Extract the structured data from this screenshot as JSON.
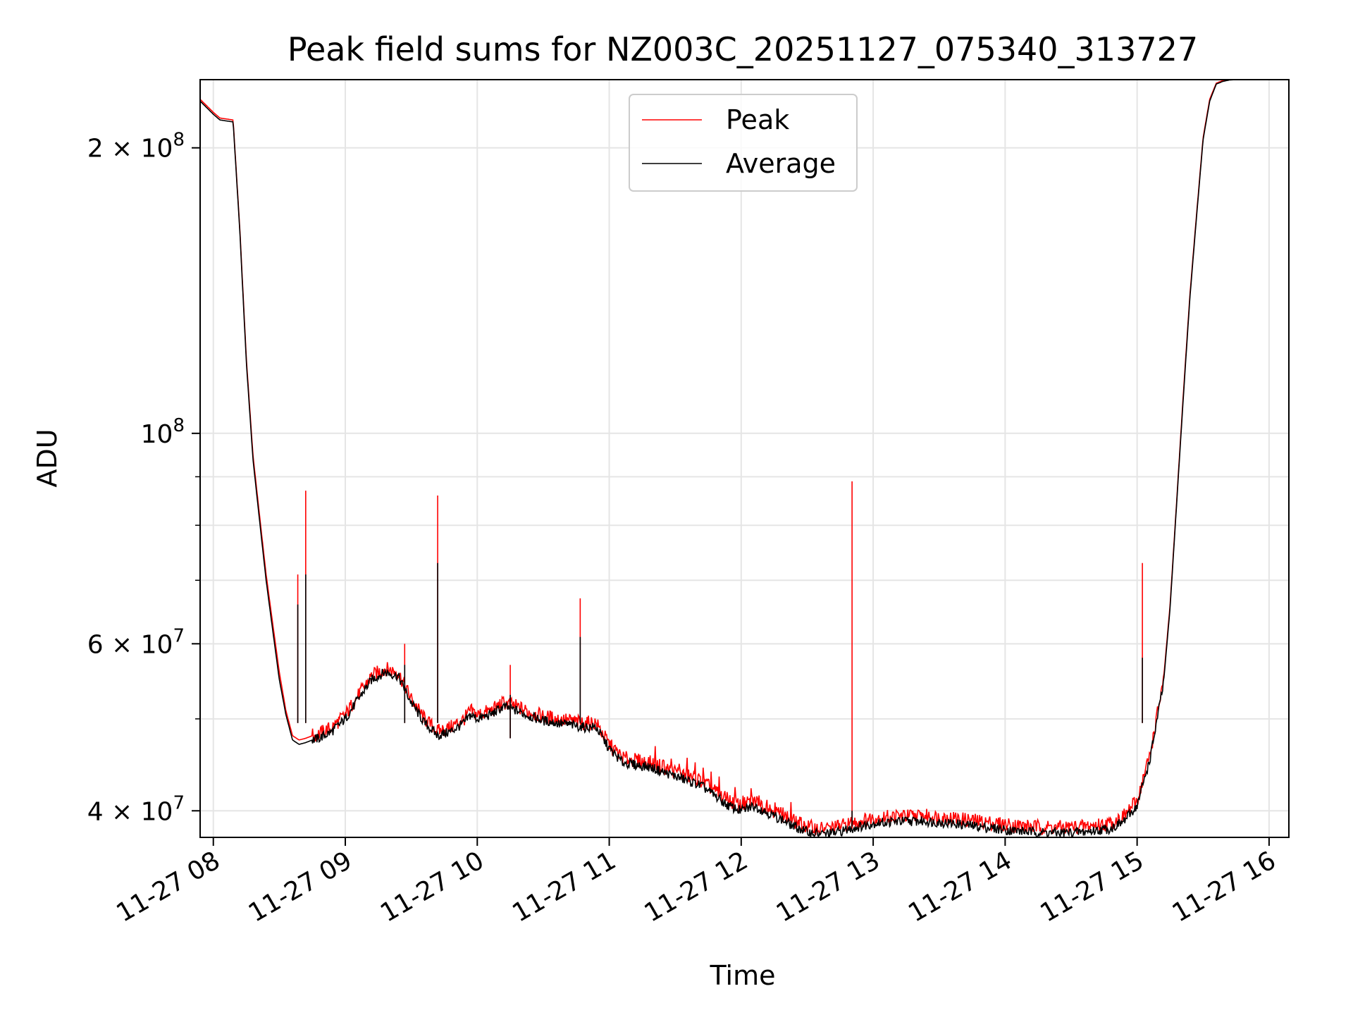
{
  "chart_data": {
    "type": "line",
    "title": "Peak field sums for NZ003C_20251127_075340_313727",
    "xlabel": "Time",
    "ylabel": "ADU",
    "yscale": "log",
    "grid": true,
    "legend_position": "top-center",
    "xlim": [
      7.9,
      16.15
    ],
    "ylim": [
      37500000,
      236000000
    ],
    "x_ticks": [
      {
        "value": 8,
        "label": "11-27 08"
      },
      {
        "value": 9,
        "label": "11-27 09"
      },
      {
        "value": 10,
        "label": "11-27 10"
      },
      {
        "value": 11,
        "label": "11-27 11"
      },
      {
        "value": 12,
        "label": "11-27 12"
      },
      {
        "value": 13,
        "label": "11-27 13"
      },
      {
        "value": 14,
        "label": "11-27 14"
      },
      {
        "value": 15,
        "label": "11-27 15"
      },
      {
        "value": 16,
        "label": "11-27 16"
      }
    ],
    "y_ticks": [
      {
        "value": 40000000,
        "mantissa": "4 × 10",
        "exponent": "7"
      },
      {
        "value": 60000000,
        "mantissa": "6 × 10",
        "exponent": "7"
      },
      {
        "value": 100000000,
        "mantissa": "10",
        "exponent": "8"
      },
      {
        "value": 200000000,
        "mantissa": "2 × 10",
        "exponent": "8"
      }
    ],
    "y_minor_ticks": [
      50000000,
      70000000,
      80000000,
      90000000
    ],
    "series": [
      {
        "name": "Peak",
        "color": "#ff0000",
        "x": [
          7.9,
          8.0,
          8.05,
          8.15,
          8.2,
          8.25,
          8.3,
          8.35,
          8.4,
          8.45,
          8.5,
          8.55,
          8.6,
          8.65,
          8.7,
          8.75,
          8.8,
          8.9,
          9.0,
          9.1,
          9.2,
          9.3,
          9.4,
          9.5,
          9.6,
          9.7,
          9.8,
          9.9,
          9.95,
          10.0,
          10.1,
          10.2,
          10.3,
          10.4,
          10.5,
          10.6,
          10.7,
          10.8,
          10.9,
          11.0,
          11.1,
          11.2,
          11.3,
          11.5,
          11.7,
          11.9,
          12.0,
          12.1,
          12.2,
          12.3,
          12.4,
          12.5,
          12.6,
          12.7,
          12.8,
          12.9,
          13.0,
          13.2,
          13.4,
          13.6,
          13.8,
          14.0,
          14.2,
          14.4,
          14.6,
          14.8,
          14.9,
          15.0,
          15.1,
          15.2,
          15.25,
          15.3,
          15.35,
          15.4,
          15.45,
          15.5,
          15.55,
          15.6,
          15.65,
          15.7,
          15.75,
          15.8,
          15.9,
          16.15
        ],
        "values": [
          225000000,
          218000000,
          215000000,
          214000000,
          165000000,
          120000000,
          95000000,
          82000000,
          71000000,
          63000000,
          56000000,
          51000000,
          48000000,
          47500000,
          47700000,
          48000000,
          48200000,
          49000000,
          50500000,
          53000000,
          55500000,
          56500000,
          56000000,
          52500000,
          50000000,
          48500000,
          49000000,
          50000000,
          51000000,
          50500000,
          51000000,
          52000000,
          51500000,
          50800000,
          50300000,
          50000000,
          49800000,
          49500000,
          49500000,
          47000000,
          45500000,
          45200000,
          45000000,
          44000000,
          43000000,
          41000000,
          40500000,
          41000000,
          40300000,
          39700000,
          39000000,
          38500000,
          38300000,
          38400000,
          38700000,
          39000000,
          39300000,
          39500000,
          39500000,
          39300000,
          39000000,
          38700000,
          38500000,
          38400000,
          38500000,
          38800000,
          39500000,
          41000000,
          46000000,
          55000000,
          66000000,
          85000000,
          110000000,
          140000000,
          170000000,
          205000000,
          225000000,
          234000000,
          235500000,
          236000000,
          236000000,
          236000000,
          236000000,
          236000000
        ]
      },
      {
        "name": "Average",
        "color": "#000000",
        "x": [
          7.9,
          8.0,
          8.05,
          8.15,
          8.2,
          8.25,
          8.3,
          8.35,
          8.4,
          8.45,
          8.5,
          8.55,
          8.6,
          8.65,
          8.7,
          8.75,
          8.8,
          8.9,
          9.0,
          9.1,
          9.2,
          9.3,
          9.4,
          9.5,
          9.6,
          9.7,
          9.8,
          9.9,
          9.95,
          10.0,
          10.1,
          10.2,
          10.3,
          10.4,
          10.5,
          10.6,
          10.7,
          10.8,
          10.9,
          11.0,
          11.1,
          11.2,
          11.3,
          11.5,
          11.7,
          11.9,
          12.0,
          12.1,
          12.2,
          12.3,
          12.4,
          12.5,
          12.6,
          12.7,
          12.8,
          12.9,
          13.0,
          13.2,
          13.4,
          13.6,
          13.8,
          14.0,
          14.2,
          14.4,
          14.6,
          14.8,
          14.9,
          15.0,
          15.1,
          15.2,
          15.25,
          15.3,
          15.35,
          15.4,
          15.45,
          15.5,
          15.55,
          15.6,
          15.65,
          15.7,
          15.75,
          15.8,
          15.9,
          16.15
        ],
        "values": [
          224000000,
          217000000,
          214000000,
          213000000,
          164000000,
          119000000,
          94000000,
          81000000,
          70000000,
          62000000,
          55000000,
          50500000,
          47500000,
          47000000,
          47200000,
          47500000,
          47700000,
          48500000,
          50000000,
          52500000,
          55000000,
          56000000,
          55500000,
          52000000,
          49500000,
          48000000,
          48500000,
          49500000,
          50500000,
          50000000,
          50500000,
          51500000,
          51000000,
          50300000,
          49800000,
          49500000,
          49300000,
          49000000,
          49000000,
          46500000,
          45000000,
          44700000,
          44500000,
          43500000,
          42500000,
          40500000,
          40000000,
          40500000,
          39800000,
          39200000,
          38500000,
          38000000,
          37800000,
          37900000,
          38200000,
          38500000,
          38800000,
          39000000,
          39000000,
          38800000,
          38500000,
          38200000,
          38000000,
          37900000,
          38000000,
          38300000,
          39000000,
          40500000,
          45500000,
          54500000,
          65500000,
          84500000,
          109000000,
          139000000,
          169000000,
          204000000,
          224000000,
          233500000,
          235000000,
          235800000,
          236000000,
          236000000,
          236000000,
          236000000
        ]
      }
    ],
    "spikes": [
      {
        "x": 8.64,
        "peak": 71000000,
        "average": 66000000
      },
      {
        "x": 8.7,
        "peak": 87000000,
        "average": 71000000
      },
      {
        "x": 9.45,
        "peak": 60000000,
        "average": 57000000
      },
      {
        "x": 9.7,
        "peak": 86000000,
        "average": 73000000
      },
      {
        "x": 10.25,
        "peak": 57000000,
        "average": 53000000
      },
      {
        "x": 10.78,
        "peak": 67000000,
        "average": 61000000
      },
      {
        "x": 12.84,
        "peak": 89000000,
        "average": 40000000
      },
      {
        "x": 15.04,
        "peak": 73000000,
        "average": 58000000
      }
    ]
  }
}
